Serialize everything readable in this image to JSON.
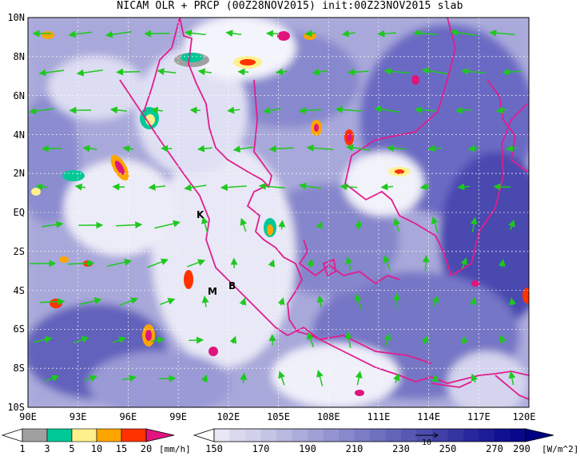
{
  "title": "NICAM OLR + PRCP (00Z28NOV2015) init:00Z23NOV2015 slab",
  "map": {
    "lat_labels": [
      "10N",
      "8N",
      "6N",
      "4N",
      "2N",
      "EQ",
      "2S",
      "4S",
      "6S",
      "8S",
      "10S"
    ],
    "lon_labels": [
      "90E",
      "93E",
      "96E",
      "99E",
      "102E",
      "105E",
      "108E",
      "111E",
      "114E",
      "117E",
      "120E"
    ],
    "place_labels": [
      "K",
      "M",
      "B"
    ],
    "extent": {
      "lon": [
        90,
        120
      ],
      "lat": [
        -10,
        10
      ]
    }
  },
  "precip_colorbar": {
    "labels": [
      "1",
      "3",
      "5",
      "10",
      "15",
      "20"
    ],
    "unit": "[mm/h]",
    "colors": [
      "#ffffff",
      "#a0a0a0",
      "#00c896",
      "#fff08c",
      "#ffa500",
      "#ff3200",
      "#e0147d"
    ]
  },
  "olr_colorbar": {
    "labels": [
      "150",
      "170",
      "190",
      "210",
      "230",
      "250",
      "270",
      "290"
    ],
    "unit": "[W/m^2]",
    "colors": [
      "#ffffff",
      "#e8e8f4",
      "#d0d0ea",
      "#b8b8e0",
      "#a0a0d6",
      "#8888cc",
      "#7070c0",
      "#5858b4",
      "#4040a8",
      "#28289c",
      "#101090",
      "#000080"
    ]
  },
  "vector_legend": {
    "label": "10"
  },
  "colors": {
    "coast": "#e01e8c",
    "wind": "#1ec81e",
    "ocean_cloud": "#6e6ec8"
  }
}
